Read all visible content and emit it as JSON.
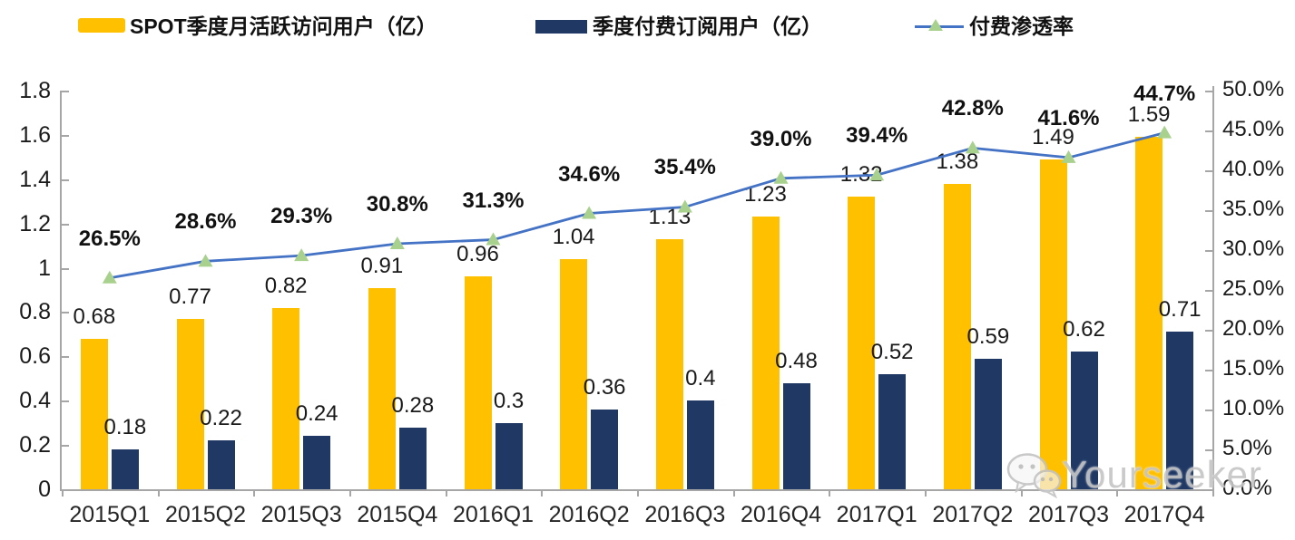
{
  "watermark": {
    "text": "Yourseeker",
    "icon": "wechat-icon"
  },
  "chart_data": {
    "type": "combo",
    "categories": [
      "2015Q1",
      "2015Q2",
      "2015Q3",
      "2015Q4",
      "2016Q1",
      "2016Q2",
      "2016Q3",
      "2016Q4",
      "2017Q1",
      "2017Q2",
      "2017Q3",
      "2017Q4"
    ],
    "series": [
      {
        "key": "mau",
        "name": "SPOT季度月活跃访问用户（亿）",
        "type": "bar",
        "axis": "left",
        "color": "#FFC000",
        "values": [
          0.68,
          0.77,
          0.82,
          0.91,
          0.96,
          1.04,
          1.13,
          1.23,
          1.32,
          1.38,
          1.49,
          1.59
        ],
        "labels": [
          "0.68",
          "0.77",
          "0.82",
          "0.91",
          "0.96",
          "1.04",
          "1.13",
          "1.23",
          "1.32",
          "1.38",
          "1.49",
          "1.59"
        ]
      },
      {
        "key": "paid-subs",
        "name": "季度付费订阅用户（亿）",
        "type": "bar",
        "axis": "left",
        "color": "#1F3864",
        "values": [
          0.18,
          0.22,
          0.24,
          0.28,
          0.3,
          0.36,
          0.4,
          0.48,
          0.52,
          0.59,
          0.62,
          0.71
        ],
        "labels": [
          "0.18",
          "0.22",
          "0.24",
          "0.28",
          "0.3",
          "0.36",
          "0.4",
          "0.48",
          "0.52",
          "0.59",
          "0.62",
          "0.71"
        ]
      },
      {
        "key": "penetration",
        "name": "付费渗透率",
        "type": "line",
        "axis": "right",
        "color": "#4472C4",
        "marker": "triangle",
        "marker_color": "#A9D18E",
        "values": [
          26.5,
          28.6,
          29.3,
          30.8,
          31.3,
          34.6,
          35.4,
          39.0,
          39.4,
          42.8,
          41.6,
          44.7
        ],
        "labels": [
          "26.5%",
          "28.6%",
          "29.3%",
          "30.8%",
          "31.3%",
          "34.6%",
          "35.4%",
          "39.0%",
          "39.4%",
          "42.8%",
          "41.6%",
          "44.7%"
        ]
      }
    ],
    "left_axis": {
      "min": 0,
      "max": 1.8,
      "step": 0.2,
      "tick_labels": [
        "1.8",
        "1.6",
        "1.4",
        "1.2",
        "1",
        "0.8",
        "0.6",
        "0.4",
        "0.2",
        "0"
      ]
    },
    "right_axis": {
      "min": 0,
      "max": 50,
      "step": 5,
      "tick_labels": [
        "50.0%",
        "45.0%",
        "40.0%",
        "35.0%",
        "30.0%",
        "25.0%",
        "20.0%",
        "15.0%",
        "10.0%",
        "5.0%",
        "0.0%"
      ]
    },
    "legend_position": "top",
    "grid": false
  }
}
